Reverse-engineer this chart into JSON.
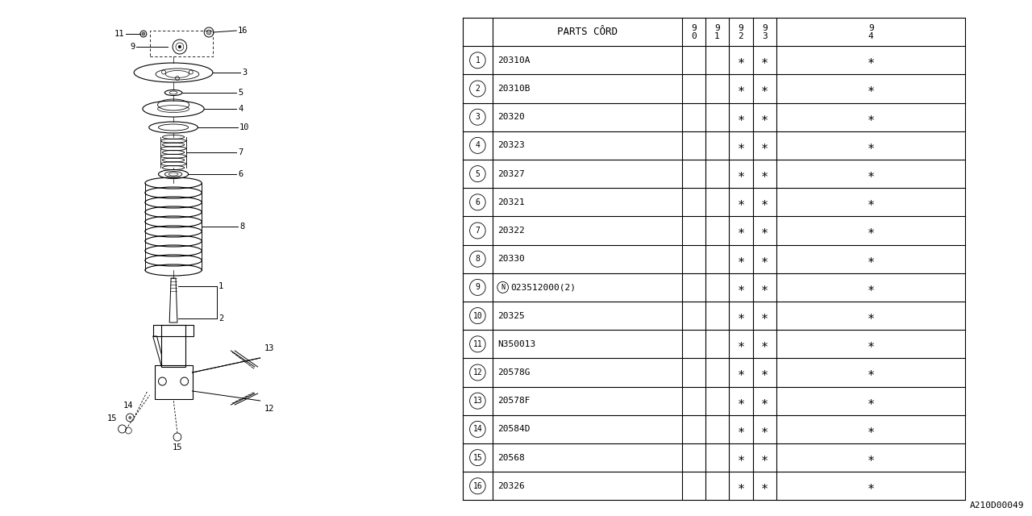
{
  "bg_color": "#ffffff",
  "diagram_code": "A210D00049",
  "table": {
    "rows": [
      [
        "1",
        "20310A",
        "",
        "",
        "*",
        "*",
        "*"
      ],
      [
        "2",
        "20310B",
        "",
        "",
        "*",
        "*",
        "*"
      ],
      [
        "3",
        "20320",
        "",
        "",
        "*",
        "*",
        "*"
      ],
      [
        "4",
        "20323",
        "",
        "",
        "*",
        "*",
        "*"
      ],
      [
        "5",
        "20327",
        "",
        "",
        "*",
        "*",
        "*"
      ],
      [
        "6",
        "20321",
        "",
        "",
        "*",
        "*",
        "*"
      ],
      [
        "7",
        "20322",
        "",
        "",
        "*",
        "*",
        "*"
      ],
      [
        "8",
        "20330",
        "",
        "",
        "*",
        "*",
        "*"
      ],
      [
        "9",
        "023512000(2)",
        "",
        "",
        "*",
        "*",
        "*"
      ],
      [
        "10",
        "20325",
        "",
        "",
        "*",
        "*",
        "*"
      ],
      [
        "11",
        "N350013",
        "",
        "",
        "*",
        "*",
        "*"
      ],
      [
        "12",
        "20578G",
        "",
        "",
        "*",
        "*",
        "*"
      ],
      [
        "13",
        "20578F",
        "",
        "",
        "*",
        "*",
        "*"
      ],
      [
        "14",
        "20584D",
        "",
        "",
        "*",
        "*",
        "*"
      ],
      [
        "15",
        "20568",
        "",
        "",
        "*",
        "*",
        "*"
      ],
      [
        "16",
        "20326",
        "",
        "",
        "*",
        "*",
        "*"
      ]
    ]
  }
}
